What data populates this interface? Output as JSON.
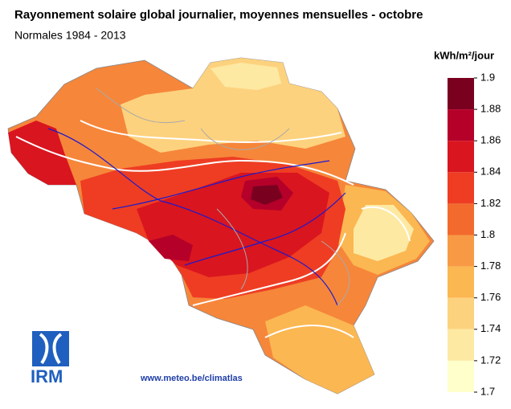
{
  "header": {
    "title": "Rayonnement solaire global journalier, moyennes mensuelles - octobre",
    "subtitle": "Normales 1984 - 2013"
  },
  "legend": {
    "unit": "kWh/m²/jour",
    "ticks": [
      1.9,
      1.88,
      1.86,
      1.84,
      1.82,
      1.8,
      1.78,
      1.76,
      1.74,
      1.72,
      1.7
    ],
    "colors": [
      "#7a0020",
      "#b5002a",
      "#d9151f",
      "#ee3d23",
      "#f26a2e",
      "#f89a45",
      "#fbb752",
      "#fdd27e",
      "#fde9a2",
      "#ffffcc"
    ]
  },
  "logo": {
    "text": "IRM"
  },
  "footer": {
    "url": "www.meteo.be/climatlas"
  }
}
